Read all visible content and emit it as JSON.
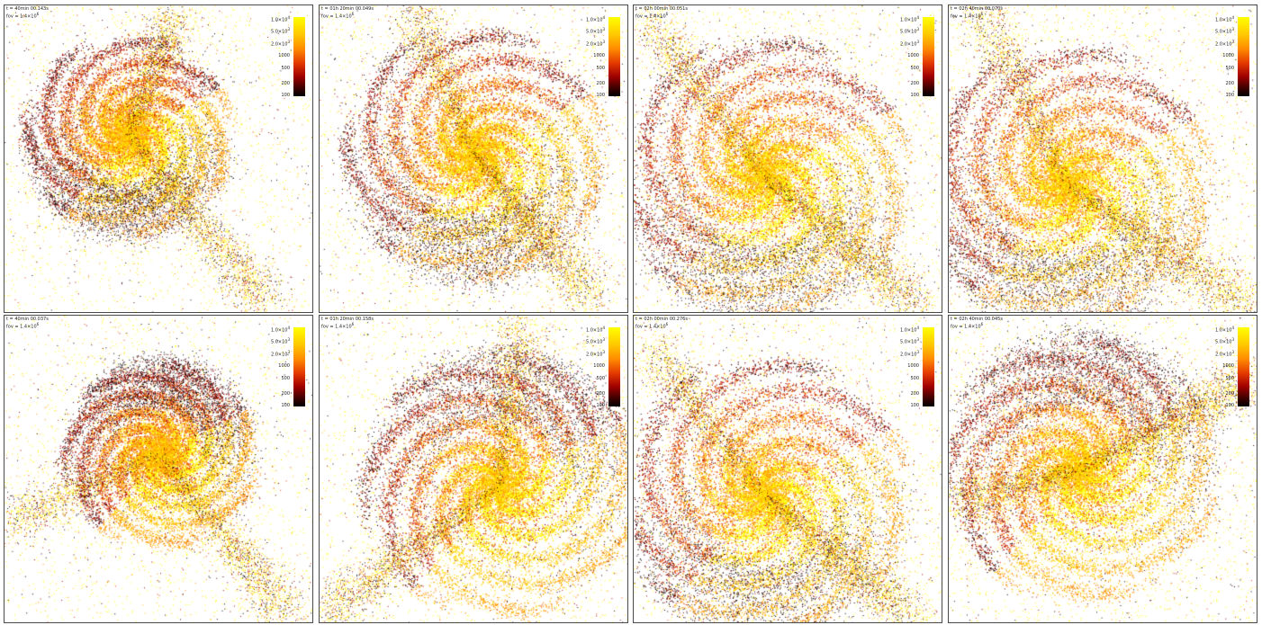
{
  "panels": [
    {
      "time": "t = 40min 00.143s",
      "fov": "fov =  1.4×10",
      "fov_exp": "6"
    },
    {
      "time": "t = 01h 20min 00.049s",
      "fov": "fov =  1.4×10",
      "fov_exp": "6"
    },
    {
      "time": "t = 02h 00min 00.051s",
      "fov": "fov =  1.4×10",
      "fov_exp": "6"
    },
    {
      "time": "t = 02h 40min 00.070s",
      "fov": "fov =  1.4×10",
      "fov_exp": "6"
    },
    {
      "time": "t = 40min 00.037s",
      "fov": "fov =  1.4×10",
      "fov_exp": "6"
    },
    {
      "time": "t = 01h 20min 00.158s",
      "fov": "fov =  1.4×10",
      "fov_exp": "6"
    },
    {
      "time": "t = 02h 00min 00.276s",
      "fov": "fov =  1.4×10",
      "fov_exp": "6"
    },
    {
      "time": "t = 02h 40min 00.045s",
      "fov": "fov =  1.4×10",
      "fov_exp": "6"
    }
  ],
  "colorbar": {
    "ticks": [
      {
        "label": "1.0×10",
        "exp": "4"
      },
      {
        "label": "5.0×10",
        "exp": "3"
      },
      {
        "label": "2.0×10",
        "exp": "3"
      },
      {
        "label": "1000",
        "exp": ""
      },
      {
        "label": "500",
        "exp": ""
      },
      {
        "label": "200",
        "exp": ""
      },
      {
        "label": "100",
        "exp": ""
      }
    ],
    "colors": [
      "#ffff00",
      "#ffc800",
      "#ff8c00",
      "#e43a00",
      "#a00000",
      "#3c0000",
      "#000000"
    ]
  }
}
